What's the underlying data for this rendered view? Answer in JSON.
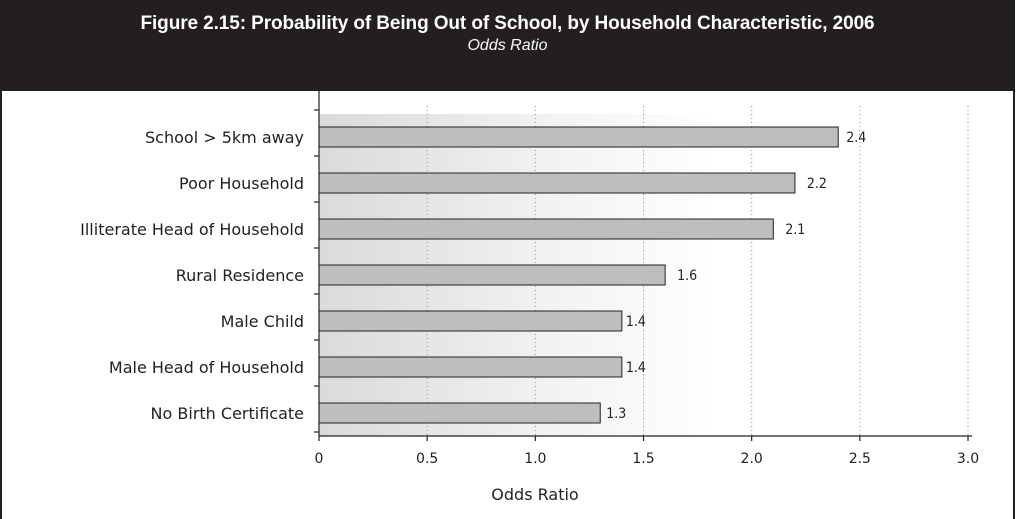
{
  "figure": {
    "title": "Figure 2.15: Probability of Being Out of School, by Household Characteristic, 2006",
    "subtitle": "Odds Ratio"
  },
  "chart_data": {
    "type": "bar",
    "orientation": "horizontal",
    "title": "Figure 2.15: Probability of Being Out of School, by Household Characteristic, 2006",
    "subtitle": "Odds Ratio",
    "xlabel": "Odds Ratio",
    "ylabel": "",
    "categories": [
      "School > 5km away",
      "Poor Household",
      "Illiterate Head of Household",
      "Rural Residence",
      "Male Child",
      "Male Head of Household",
      "No Birth Certificate"
    ],
    "values": [
      2.4,
      2.2,
      2.1,
      1.6,
      1.4,
      1.4,
      1.3
    ],
    "value_labels": [
      "2.4",
      "2.2",
      "2.1",
      "1.6",
      "1.4",
      "1.4",
      "1.3"
    ],
    "xlim": [
      0,
      3.0
    ],
    "xticks": [
      "0",
      "0.5",
      "1.0",
      "1.5",
      "2.0",
      "2.5",
      "3.0"
    ],
    "grid": "vertical dotted",
    "bar_color": "#bcbec0"
  }
}
